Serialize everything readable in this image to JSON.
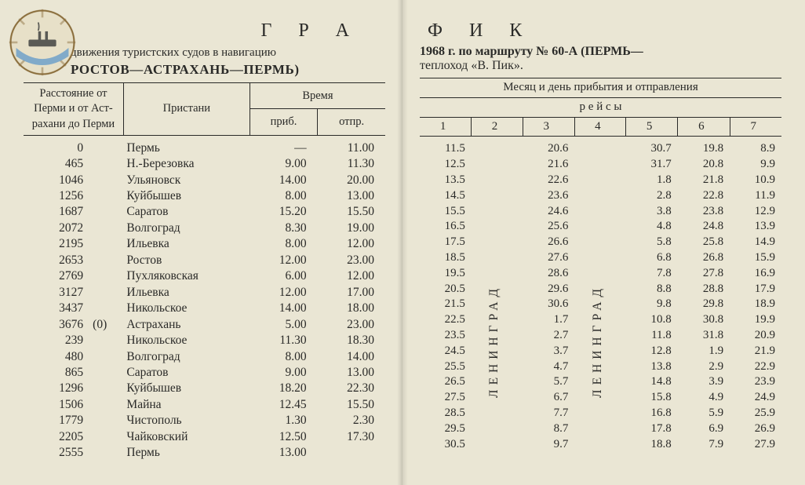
{
  "title_left": "Г Р А",
  "title_right": "Ф И К",
  "left_sub1": "движения туристских судов в навигацию",
  "left_sub2": "РОСТОВ—АСТРАХАНЬ—ПЕРМЬ)",
  "right_sub1_a": "1968 г.   по маршруту № 60-А",
  "right_sub1_b": "(ПЕРМЬ—",
  "right_sub2": "теплоход «В. Пик».",
  "left_head": {
    "dist": "Расстояние от Перми и от Аст- рахани до Перми",
    "stations": "Пристани",
    "time": "Время",
    "arr": "приб.",
    "dep": "отпр."
  },
  "right_head": {
    "top": "Месяц и день прибытия и отправления",
    "mid": "р е й с ы",
    "c1": "1",
    "c2": "2",
    "c3": "3",
    "c4": "4",
    "c5": "5",
    "c6": "6",
    "c7": "7"
  },
  "vert_word": "ЛЕНИНГРАД",
  "left_rows": [
    {
      "km": "0",
      "km2": "",
      "name": "Пермь",
      "arr": "—",
      "dep": "11.00"
    },
    {
      "km": "465",
      "km2": "",
      "name": "Н.-Березовка",
      "arr": "9.00",
      "dep": "11.30"
    },
    {
      "km": "1046",
      "km2": "",
      "name": "Ульяновск",
      "arr": "14.00",
      "dep": "20.00"
    },
    {
      "km": "1256",
      "km2": "",
      "name": "Куйбышев",
      "arr": "8.00",
      "dep": "13.00"
    },
    {
      "km": "1687",
      "km2": "",
      "name": "Саратов",
      "arr": "15.20",
      "dep": "15.50"
    },
    {
      "km": "2072",
      "km2": "",
      "name": "Волгоград",
      "arr": "8.30",
      "dep": "19.00"
    },
    {
      "km": "2195",
      "km2": "",
      "name": "Ильевка",
      "arr": "8.00",
      "dep": "12.00"
    },
    {
      "km": "2653",
      "km2": "",
      "name": "Ростов",
      "arr": "12.00",
      "dep": "23.00"
    },
    {
      "km": "2769",
      "km2": "",
      "name": "Пухляковская",
      "arr": "6.00",
      "dep": "12.00"
    },
    {
      "km": "3127",
      "km2": "",
      "name": "Ильевка",
      "arr": "12.00",
      "dep": "17.00"
    },
    {
      "km": "3437",
      "km2": "",
      "name": "Никольское",
      "arr": "14.00",
      "dep": "18.00"
    },
    {
      "km": "3676",
      "km2": "(0)",
      "name": "Астрахань",
      "arr": "5.00",
      "dep": "23.00"
    },
    {
      "km": "239",
      "km2": "",
      "name": "Никольское",
      "arr": "11.30",
      "dep": "18.30"
    },
    {
      "km": "480",
      "km2": "",
      "name": "Волгоград",
      "arr": "8.00",
      "dep": "14.00"
    },
    {
      "km": "865",
      "km2": "",
      "name": "Саратов",
      "arr": "9.00",
      "dep": "13.00"
    },
    {
      "km": "1296",
      "km2": "",
      "name": "Куйбышев",
      "arr": "18.20",
      "dep": "22.30"
    },
    {
      "km": "1506",
      "km2": "",
      "name": "Майна",
      "arr": "12.45",
      "dep": "15.50"
    },
    {
      "km": "1779",
      "km2": "",
      "name": "Чистополь",
      "arr": "1.30",
      "dep": "2.30"
    },
    {
      "km": "2205",
      "km2": "",
      "name": "Чайковский",
      "arr": "12.50",
      "dep": "17.30"
    },
    {
      "km": "2555",
      "km2": "",
      "name": "Пермь",
      "arr": "13.00",
      "dep": ""
    }
  ],
  "right_rows": [
    {
      "c1": "11.5",
      "c2": "",
      "c3": "20.6",
      "c4": "",
      "c5": "30.7",
      "c6": "19.8",
      "c7": "8.9"
    },
    {
      "c1": "12.5",
      "c2": "",
      "c3": "21.6",
      "c4": "",
      "c5": "31.7",
      "c6": "20.8",
      "c7": "9.9"
    },
    {
      "c1": "13.5",
      "c2": "",
      "c3": "22.6",
      "c4": "",
      "c5": "1.8",
      "c6": "21.8",
      "c7": "10.9"
    },
    {
      "c1": "14.5",
      "c2": "",
      "c3": "23.6",
      "c4": "",
      "c5": "2.8",
      "c6": "22.8",
      "c7": "11.9"
    },
    {
      "c1": "15.5",
      "c2": "",
      "c3": "24.6",
      "c4": "",
      "c5": "3.8",
      "c6": "23.8",
      "c7": "12.9"
    },
    {
      "c1": "16.5",
      "c2": "",
      "c3": "25.6",
      "c4": "",
      "c5": "4.8",
      "c6": "24.8",
      "c7": "13.9"
    },
    {
      "c1": "17.5",
      "c2": "",
      "c3": "26.6",
      "c4": "",
      "c5": "5.8",
      "c6": "25.8",
      "c7": "14.9"
    },
    {
      "c1": "18.5",
      "c2": "",
      "c3": "27.6",
      "c4": "",
      "c5": "6.8",
      "c6": "26.8",
      "c7": "15.9"
    },
    {
      "c1": "19.5",
      "c2": "",
      "c3": "28.6",
      "c4": "",
      "c5": "7.8",
      "c6": "27.8",
      "c7": "16.9"
    },
    {
      "c1": "20.5",
      "c2": "",
      "c3": "29.6",
      "c4": "",
      "c5": "8.8",
      "c6": "28.8",
      "c7": "17.9"
    },
    {
      "c1": "21.5",
      "c2": "",
      "c3": "30.6",
      "c4": "",
      "c5": "9.8",
      "c6": "29.8",
      "c7": "18.9"
    },
    {
      "c1": "22.5",
      "c2": "",
      "c3": "1.7",
      "c4": "",
      "c5": "10.8",
      "c6": "30.8",
      "c7": "19.9"
    },
    {
      "c1": "23.5",
      "c2": "",
      "c3": "2.7",
      "c4": "",
      "c5": "11.8",
      "c6": "31.8",
      "c7": "20.9"
    },
    {
      "c1": "24.5",
      "c2": "",
      "c3": "3.7",
      "c4": "",
      "c5": "12.8",
      "c6": "1.9",
      "c7": "21.9"
    },
    {
      "c1": "25.5",
      "c2": "",
      "c3": "4.7",
      "c4": "",
      "c5": "13.8",
      "c6": "2.9",
      "c7": "22.9"
    },
    {
      "c1": "26.5",
      "c2": "",
      "c3": "5.7",
      "c4": "",
      "c5": "14.8",
      "c6": "3.9",
      "c7": "23.9"
    },
    {
      "c1": "27.5",
      "c2": "",
      "c3": "6.7",
      "c4": "",
      "c5": "15.8",
      "c6": "4.9",
      "c7": "24.9"
    },
    {
      "c1": "28.5",
      "c2": "",
      "c3": "7.7",
      "c4": "",
      "c5": "16.8",
      "c6": "5.9",
      "c7": "25.9"
    },
    {
      "c1": "29.5",
      "c2": "",
      "c3": "8.7",
      "c4": "",
      "c5": "17.8",
      "c6": "6.9",
      "c7": "26.9"
    },
    {
      "c1": "30.5",
      "c2": "",
      "c3": "9.7",
      "c4": "",
      "c5": "18.8",
      "c6": "7.9",
      "c7": "27.9"
    }
  ],
  "vert_col2": {
    "start": 6,
    "end": 19
  },
  "vert_col4": {
    "start": 6,
    "end": 19
  },
  "colors": {
    "paper": "#eae6d4",
    "ink": "#2a2a28",
    "logo_ring": "#8a6d3b",
    "logo_inner": "#e7e0c8",
    "logo_sea": "#6fa0c9",
    "logo_ship": "#5a5a55"
  }
}
